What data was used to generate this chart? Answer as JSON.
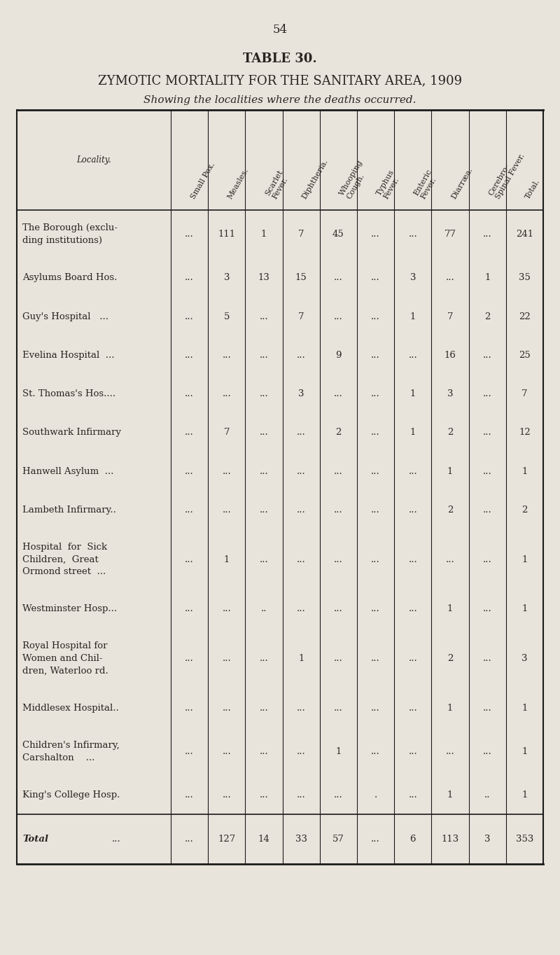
{
  "page_number": "54",
  "table_title": "TABLE 30.",
  "table_subtitle": "ZYMOTIC MORTALITY FOR THE SANITARY AREA, 1909",
  "table_subtitle2": "Showing the localities where the deaths occurred.",
  "col_headers": [
    "Small Pox.",
    "Measles.",
    "Scarlet\nFever.",
    "Diphtheria.",
    "Whooping\nCough.",
    "Typhus\nFever.",
    "Enteric\nFever.",
    "Diarræa.",
    "Cerebro-\nSpinal Fever.",
    "Total."
  ],
  "row_locality_header": "Locality.",
  "rows": [
    {
      "locality": [
        "The Borough (exclu-",
        "ding institutions)"
      ],
      "values": [
        "...",
        "111",
        "1",
        "7",
        "45",
        "...",
        "...",
        "77",
        "...",
        "241"
      ]
    },
    {
      "locality": [
        "Asylums Board Hos."
      ],
      "values": [
        "...",
        "3",
        "13",
        "15",
        "...",
        "...",
        "3",
        "...",
        "1",
        "35"
      ]
    },
    {
      "locality": [
        "Guy's Hospital   ..."
      ],
      "values": [
        "...",
        "5",
        "...",
        "7",
        "...",
        "...",
        "1",
        "7",
        "2",
        "22"
      ]
    },
    {
      "locality": [
        "Evelina Hospital  ..."
      ],
      "values": [
        "...",
        "...",
        "...",
        "...",
        "9",
        "...",
        "...",
        "16",
        "...",
        "25"
      ]
    },
    {
      "locality": [
        "St. Thomas's Hos...."
      ],
      "values": [
        "...",
        "...",
        "...",
        "3",
        "...",
        "...",
        "1",
        "3",
        "...",
        "7"
      ]
    },
    {
      "locality": [
        "Southwark Infirmary"
      ],
      "values": [
        "...",
        "7",
        "...",
        "...",
        "2",
        "...",
        "1",
        "2",
        "...",
        "12"
      ]
    },
    {
      "locality": [
        "Hanwell Asylum  ..."
      ],
      "values": [
        "...",
        "...",
        "...",
        "...",
        "...",
        "...",
        "...",
        "1",
        "...",
        "1"
      ]
    },
    {
      "locality": [
        "Lambeth Infirmary.."
      ],
      "values": [
        "...",
        "...",
        "...",
        "...",
        "...",
        "...",
        "...",
        "2",
        "...",
        "2"
      ]
    },
    {
      "locality": [
        "Hospital  for  Sick",
        "Children,  Great",
        "Ormond street  ..."
      ],
      "values": [
        "...",
        "1",
        "...",
        "...",
        "...",
        "...",
        "...",
        "...",
        "...",
        "1"
      ]
    },
    {
      "locality": [
        "Westminster Hosp..."
      ],
      "values": [
        "...",
        "...",
        "..",
        "...",
        "...",
        "...",
        "...",
        "1",
        "...",
        "1"
      ]
    },
    {
      "locality": [
        "Royal Hospital for",
        "Women and Chil-",
        "dren, Waterloo rd."
      ],
      "values": [
        "...",
        "...",
        "...",
        "1",
        "...",
        "...",
        "...",
        "2",
        "...",
        "3"
      ]
    },
    {
      "locality": [
        "Middlesex Hospital.."
      ],
      "values": [
        "...",
        "...",
        "...",
        "...",
        "...",
        "...",
        "...",
        "1",
        "...",
        "1"
      ]
    },
    {
      "locality": [
        "Children's Infirmary,",
        "Carshalton    ..."
      ],
      "values": [
        "...",
        "...",
        "...",
        "...",
        "1",
        "...",
        "...",
        "...",
        "...",
        "1"
      ]
    },
    {
      "locality": [
        "King's College Hosp."
      ],
      "values": [
        "...",
        "...",
        "...",
        "...",
        "...",
        ".",
        "...",
        "1",
        "..",
        "1"
      ]
    }
  ],
  "total_row": {
    "locality": [
      "Total",
      "..."
    ],
    "values": [
      "...",
      "127",
      "14",
      "33",
      "57",
      "...",
      "6",
      "113",
      "3",
      "353"
    ]
  },
  "bg_color": "#e8e4dc",
  "text_color": "#2a2420",
  "line_color": "#1a1a1a",
  "font_size_page": 12,
  "font_size_title": 13,
  "font_size_subtitle": 13,
  "font_size_subtitle2": 11,
  "font_size_cell": 9.5,
  "font_size_header": 8.5
}
